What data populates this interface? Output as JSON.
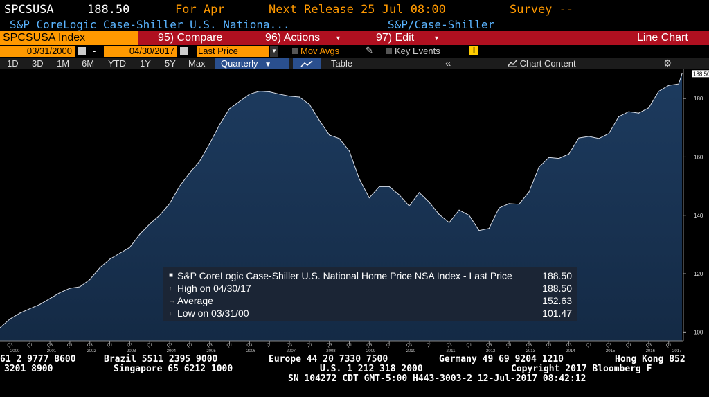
{
  "header": {
    "ticker": "SPCSUSA",
    "price": "188.50",
    "for_label": "For Apr",
    "next_release": "Next Release 25 Jul 08:00",
    "survey": "Survey --",
    "description": "S&P CoreLogic Case-Shiller U.S. Nationa...",
    "source": "S&P/Case-Shiller"
  },
  "toolbar": {
    "security": "SPCSUSA Index",
    "compare": "95) Compare",
    "actions": "96) Actions",
    "edit": "97) Edit",
    "chart_type": "Line Chart",
    "start_date": "03/31/2000",
    "end_date": "04/30/2017",
    "dash": "-",
    "field": "Last Price",
    "mov_avgs": "Mov Avgs",
    "key_events": "Key Events",
    "ranges": [
      "1D",
      "3D",
      "1M",
      "6M",
      "YTD",
      "1Y",
      "5Y",
      "Max"
    ],
    "frequency": "Quarterly",
    "table": "Table",
    "chart_content": "Chart Content"
  },
  "legend": {
    "title": "S&P CoreLogic Case-Shiller U.S. National Home Price NSA Index - Last Price",
    "last_value": "188.50",
    "high_label": "High on 04/30/17",
    "high_value": "188.50",
    "avg_label": "Average",
    "avg_value": "152.63",
    "low_label": "Low on 03/31/00",
    "low_value": "101.47"
  },
  "ticker": {
    "line1": [
      "61 2 9777 8600",
      "Brazil 5511 2395 9000",
      "Europe 44 20 7330 7500",
      "Germany 49 69 9204 1210",
      "Hong Kong 852"
    ],
    "line2": [
      "3201 8900",
      "Singapore 65 6212 1000",
      "U.S. 1 212 318 2000",
      "Copyright 2017 Bloomberg F"
    ],
    "line3": "SN 104272 CDT  GMT-5:00 H443-3003-2 12-Jul-2017 08:42:12"
  },
  "colors": {
    "orange": "#ff9900",
    "fill": "#1a3556",
    "line": "#d8dde6",
    "red_bar": "#b01020"
  },
  "chart_data": {
    "type": "area",
    "title": "",
    "xlabel": "",
    "ylabel": "",
    "ylim": [
      97,
      190
    ],
    "yticks": [
      100,
      120,
      140,
      160,
      180
    ],
    "last_label": "188.50",
    "year_labels": [
      "2000",
      "2001",
      "2002",
      "2003",
      "2004",
      "2005",
      "2006",
      "2007",
      "2008",
      "2009",
      "2010",
      "2011",
      "2012",
      "2013",
      "2014",
      "2015",
      "2016",
      "2017"
    ],
    "quarter_labels": [
      "Q3",
      "Q1",
      "Q3",
      "Q1",
      "Q3",
      "Q1",
      "Q3",
      "Q1",
      "Q3",
      "Q1",
      "Q3",
      "Q1",
      "Q3",
      "Q1",
      "Q3",
      "Q1",
      "Q3",
      "Q1",
      "Q3",
      "Q1",
      "Q3",
      "Q1",
      "Q3",
      "Q1",
      "Q3",
      "Q1",
      "Q3",
      "Q1",
      "Q3",
      "Q1",
      "Q3",
      "Q1",
      "Q3",
      "Q1",
      "Q3"
    ],
    "x": [
      "2000-03",
      "2000-06",
      "2000-09",
      "2000-12",
      "2001-03",
      "2001-06",
      "2001-09",
      "2001-12",
      "2002-03",
      "2002-06",
      "2002-09",
      "2002-12",
      "2003-03",
      "2003-06",
      "2003-09",
      "2003-12",
      "2004-03",
      "2004-06",
      "2004-09",
      "2004-12",
      "2005-03",
      "2005-06",
      "2005-09",
      "2005-12",
      "2006-03",
      "2006-06",
      "2006-09",
      "2006-12",
      "2007-03",
      "2007-06",
      "2007-09",
      "2007-12",
      "2008-03",
      "2008-06",
      "2008-09",
      "2008-12",
      "2009-03",
      "2009-06",
      "2009-09",
      "2009-12",
      "2010-03",
      "2010-06",
      "2010-09",
      "2010-12",
      "2011-03",
      "2011-06",
      "2011-09",
      "2011-12",
      "2012-03",
      "2012-06",
      "2012-09",
      "2012-12",
      "2013-03",
      "2013-06",
      "2013-09",
      "2013-12",
      "2014-03",
      "2014-06",
      "2014-09",
      "2014-12",
      "2015-03",
      "2015-06",
      "2015-09",
      "2015-12",
      "2016-03",
      "2016-06",
      "2016-09",
      "2016-12",
      "2017-03",
      "2017-04"
    ],
    "series": [
      {
        "values": [
          101.5,
          104.5,
          106.5,
          108.0,
          109.5,
          111.5,
          113.5,
          115.0,
          115.5,
          118.0,
          122.0,
          125.0,
          127.0,
          129.0,
          133.5,
          137.0,
          140.0,
          144.0,
          150.0,
          154.5,
          158.5,
          164.5,
          171.0,
          176.5,
          179.0,
          181.5,
          182.5,
          182.3,
          181.5,
          180.8,
          180.5,
          178.0,
          172.5,
          167.5,
          166.3,
          162.0,
          152.5,
          146.0,
          149.8,
          149.8,
          147.0,
          143.2,
          147.8,
          144.5,
          140.3,
          137.5,
          141.8,
          140.0,
          134.8,
          135.5,
          142.5,
          144.0,
          143.8,
          148.0,
          156.5,
          159.8,
          159.5,
          161.0,
          166.5,
          167.0,
          166.3,
          168.0,
          173.8,
          175.5,
          175.0,
          176.8,
          182.5,
          184.5,
          185.0,
          188.5
        ]
      }
    ]
  }
}
